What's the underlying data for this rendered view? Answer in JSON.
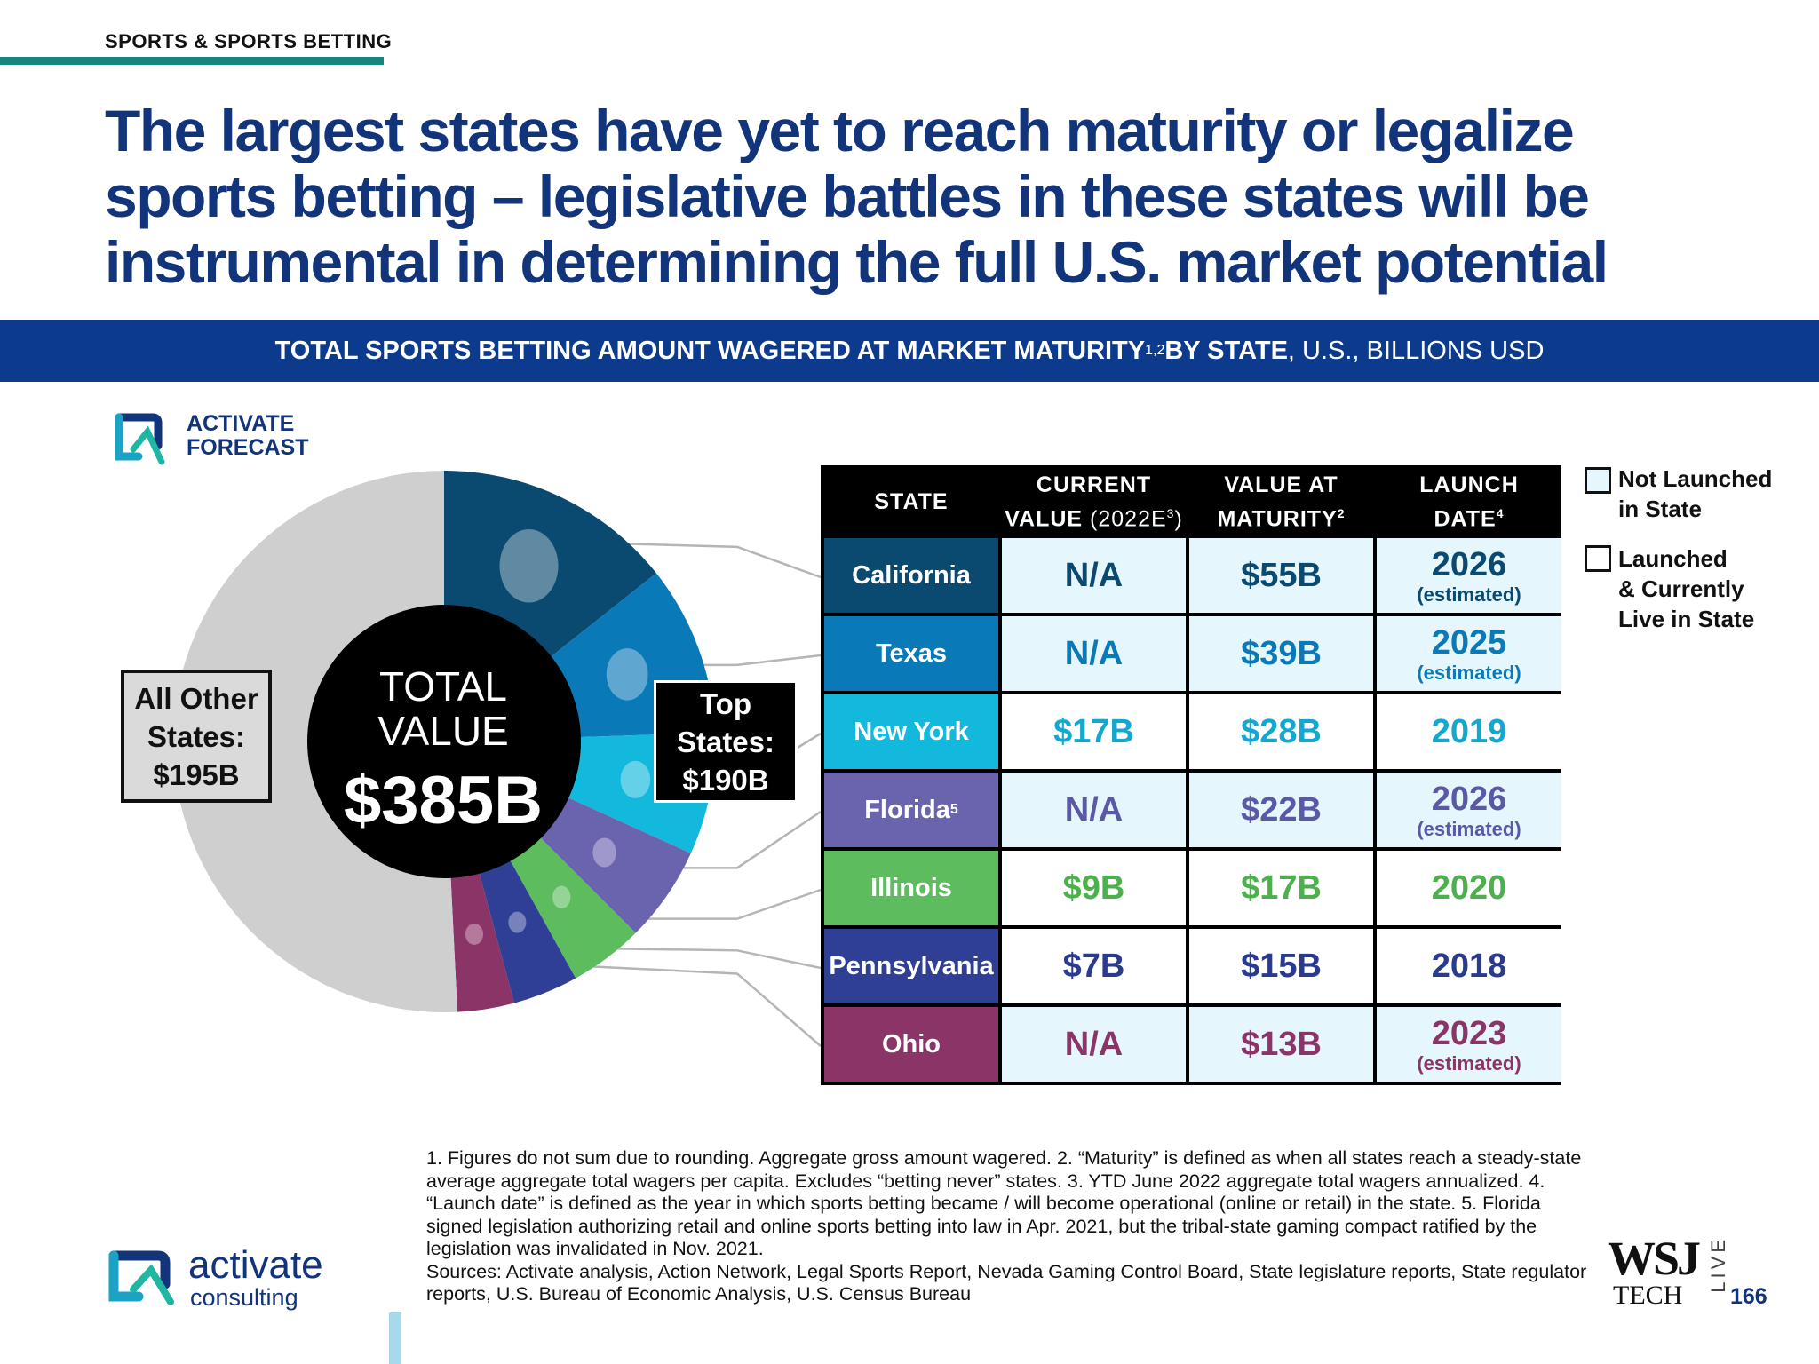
{
  "header": {
    "section_tag": "SPORTS & SPORTS BETTING",
    "headline": "The largest states have yet to reach maturity or legalize sports betting – legislative battles in these states will be instrumental in determining the full U.S. market potential"
  },
  "banner": {
    "title_bold": "TOTAL SPORTS BETTING AMOUNT WAGERED AT MARKET MATURITY",
    "title_sup": "1,2",
    "title_bold2": " BY STATE",
    "title_rest": ", U.S., BILLIONS USD"
  },
  "forecast_logo": {
    "line1": "ACTIVATE",
    "line2": "FORECAST"
  },
  "center": {
    "label_line1": "TOTAL",
    "label_line2": "VALUE",
    "value": "$385B"
  },
  "callouts": {
    "other_line1": "All Other",
    "other_line2": "States:",
    "other_line3": "$195B",
    "top_line1": "Top",
    "top_line2": "States:",
    "top_line3": "$190B"
  },
  "table": {
    "headers": {
      "state": "STATE",
      "current_line1": "CURRENT",
      "current_line2": "VALUE",
      "current_light": " (2022E",
      "current_sup": "3",
      "current_close": ")",
      "maturity_line1": "VALUE AT",
      "maturity_line2": "MATURITY",
      "maturity_sup": "2",
      "launch_line1": "LAUNCH",
      "launch_line2": "DATE",
      "launch_sup": "4"
    },
    "rows": [
      {
        "state": "California",
        "sup": "",
        "current": "N/A",
        "maturity": "$55B",
        "launch": "2026",
        "launch_note": "(estimated)"
      },
      {
        "state": "Texas",
        "sup": "",
        "current": "N/A",
        "maturity": "$39B",
        "launch": "2025",
        "launch_note": "(estimated)"
      },
      {
        "state": "New York",
        "sup": "",
        "current": "$17B",
        "maturity": "$28B",
        "launch": "2019",
        "launch_note": ""
      },
      {
        "state": "Florida",
        "sup": "5",
        "current": "N/A",
        "maturity": "$22B",
        "launch": "2026",
        "launch_note": "(estimated)"
      },
      {
        "state": "Illinois",
        "sup": "",
        "current": "$9B",
        "maturity": "$17B",
        "launch": "2020",
        "launch_note": ""
      },
      {
        "state": "Pennsylvania",
        "sup": "",
        "current": "$7B",
        "maturity": "$15B",
        "launch": "2018",
        "launch_note": ""
      },
      {
        "state": "Ohio",
        "sup": "",
        "current": "N/A",
        "maturity": "$13B",
        "launch": "2023",
        "launch_note": "(estimated)"
      }
    ]
  },
  "legend": {
    "not_launched_line1": "Not Launched",
    "not_launched_line2": "in State",
    "launched_line1": "Launched",
    "launched_line2": "& Currently",
    "launched_line3": "Live in State"
  },
  "footnote": {
    "notes": "1. Figures do not sum due to rounding. Aggregate gross amount wagered.  2. “Maturity” is defined as when all states reach a steady-state average aggregate total wagers per capita. Excludes “betting never” states.  3. YTD June 2022 aggregate total wagers annualized.  4. “Launch date” is defined as the year in which sports betting became / will become operational (online or retail) in the state.  5. Florida signed legislation authorizing retail and online sports betting into law in Apr. 2021, but the tribal-state gaming compact ratified by the legislation was invalidated in Nov. 2021.",
    "sources": "Sources: Activate analysis, Action Network, Legal Sports Report, Nevada Gaming Control Board, State legislature reports, State regulator reports, U.S. Bureau of Economic Analysis, U.S. Census Bureau"
  },
  "footer": {
    "brand_line1": "activate",
    "brand_line2": "consulting",
    "wsj": "WSJ",
    "wsj_tech": "TECH",
    "wsj_live": "LIVE",
    "page_number": "166"
  },
  "colors": {
    "navy": "#12347a",
    "banner": "#0c3a8c",
    "teal_rule": "#17847e",
    "not_launched_cell": "#e6f6fd",
    "other_states": "#cfcfcf"
  },
  "chart_data": {
    "type": "pie",
    "total": 385,
    "unit": "billions USD",
    "slices": [
      {
        "label": "California",
        "value": 55,
        "color": "#0b4a70",
        "text_color": "#0b4a70"
      },
      {
        "label": "Texas",
        "value": 39,
        "color": "#0a79b8",
        "text_color": "#0a79b8"
      },
      {
        "label": "New York",
        "value": 28,
        "color": "#12b9dd",
        "text_color": "#12a8cf"
      },
      {
        "label": "Florida",
        "value": 22,
        "color": "#6a63ae",
        "text_color": "#5c58a8"
      },
      {
        "label": "Illinois",
        "value": 17,
        "color": "#5cbc5e",
        "text_color": "#4cb04c"
      },
      {
        "label": "Pennsylvania",
        "value": 15,
        "color": "#2f3f96",
        "text_color": "#2a3a8e"
      },
      {
        "label": "Ohio",
        "value": 13,
        "color": "#8b3468",
        "text_color": "#8b3468"
      },
      {
        "label": "All Other States",
        "value": 195,
        "color": "#cfcfcf",
        "text_color": "#111111"
      }
    ],
    "launched": [
      false,
      false,
      true,
      false,
      true,
      true,
      false
    ]
  }
}
